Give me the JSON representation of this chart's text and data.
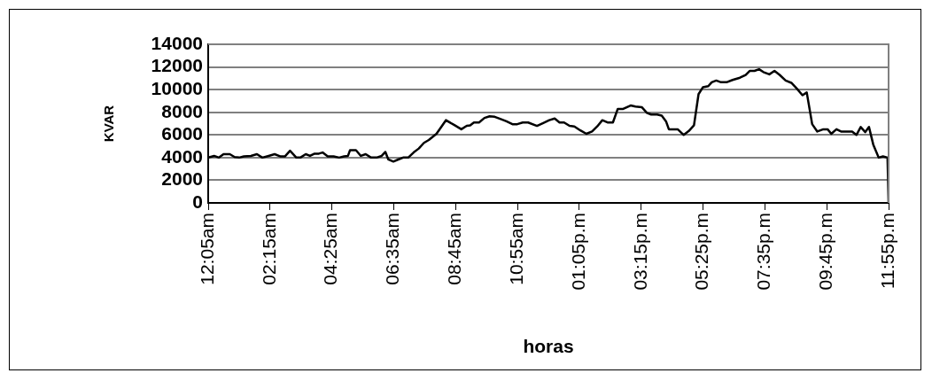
{
  "chart_data": {
    "type": "line",
    "xlabel": "horas",
    "ylabel": "KVAR",
    "xlim": [
      0.0833,
      23.9167
    ],
    "xticks": [
      {
        "value": 0.0833,
        "label": "12:05am"
      },
      {
        "value": 2.25,
        "label": "02:15am"
      },
      {
        "value": 4.4167,
        "label": "04:25am"
      },
      {
        "value": 6.5833,
        "label": "06:35am"
      },
      {
        "value": 8.75,
        "label": "08:45am"
      },
      {
        "value": 10.9167,
        "label": "10:55am"
      },
      {
        "value": 13.0833,
        "label": "01:05p.m"
      },
      {
        "value": 15.25,
        "label": "03:15p.m"
      },
      {
        "value": 17.4167,
        "label": "05:25p.m"
      },
      {
        "value": 19.5833,
        "label": "07:35p.m"
      },
      {
        "value": 21.75,
        "label": "09:45p.m"
      },
      {
        "value": 23.9167,
        "label": "11:55p.m"
      }
    ],
    "ylim": [
      0,
      14000
    ],
    "yticks": [
      0,
      2000,
      4000,
      6000,
      8000,
      10000,
      12000,
      14000
    ],
    "grid": "y",
    "series": [
      {
        "color": "#000000",
        "line_style": "solid",
        "x": [
          0.0833,
          0.29,
          0.46,
          0.62,
          0.84,
          1.01,
          1.17,
          1.33,
          1.58,
          1.79,
          1.98,
          2.2,
          2.41,
          2.62,
          2.77,
          2.95,
          3.17,
          3.31,
          3.5,
          3.65,
          3.81,
          3.96,
          4.09,
          4.27,
          4.48,
          4.67,
          4.84,
          4.98,
          5.05,
          5.26,
          5.43,
          5.6,
          5.79,
          5.98,
          6.16,
          6.29,
          6.39,
          6.57,
          6.76,
          6.91,
          7.09,
          7.28,
          7.46,
          7.64,
          7.81,
          8.08,
          8.41,
          8.72,
          8.95,
          9.14,
          9.26,
          9.39,
          9.57,
          9.76,
          9.94,
          10.12,
          10.33,
          10.53,
          10.74,
          10.91,
          11.1,
          11.29,
          11.6,
          11.82,
          12.03,
          12.22,
          12.39,
          12.55,
          12.74,
          12.91,
          13.12,
          13.33,
          13.53,
          13.71,
          13.89,
          14.07,
          14.26,
          14.43,
          14.62,
          14.88,
          15.05,
          15.27,
          15.45,
          15.6,
          15.81,
          15.97,
          16.12,
          16.22,
          16.53,
          16.74,
          16.92,
          17.1,
          17.26,
          17.41,
          17.6,
          17.72,
          17.88,
          18.05,
          18.24,
          18.45,
          18.71,
          18.91,
          19.05,
          19.22,
          19.38,
          19.53,
          19.74,
          19.92,
          20.1,
          20.31,
          20.51,
          20.7,
          20.9,
          21.05,
          21.24,
          21.42,
          21.63,
          21.78,
          21.91,
          22.09,
          22.25,
          22.48,
          22.64,
          22.79,
          22.94,
          23.1,
          23.23,
          23.38,
          23.57,
          23.72,
          23.88,
          23.9167
        ],
        "values": [
          4000,
          4150,
          4000,
          4300,
          4300,
          4050,
          4000,
          4100,
          4150,
          4300,
          4000,
          4150,
          4300,
          4100,
          4100,
          4600,
          4000,
          4000,
          4300,
          4150,
          4350,
          4350,
          4450,
          4100,
          4100,
          4000,
          4100,
          4150,
          4650,
          4650,
          4150,
          4300,
          4000,
          4000,
          4150,
          4500,
          3850,
          3650,
          3850,
          4000,
          4000,
          4450,
          4800,
          5300,
          5550,
          6100,
          7300,
          6850,
          6500,
          6800,
          6850,
          7100,
          7100,
          7500,
          7650,
          7600,
          7400,
          7200,
          6950,
          6950,
          7100,
          7100,
          6800,
          7050,
          7300,
          7450,
          7100,
          7100,
          6800,
          6750,
          6400,
          6100,
          6300,
          6750,
          7300,
          7100,
          7100,
          8300,
          8300,
          8600,
          8500,
          8450,
          7950,
          7800,
          7800,
          7700,
          7200,
          6500,
          6500,
          6000,
          6350,
          6850,
          9600,
          10200,
          10300,
          10650,
          10800,
          10650,
          10650,
          10850,
          11050,
          11300,
          11650,
          11650,
          11800,
          11550,
          11350,
          11650,
          11300,
          10800,
          10600,
          10100,
          9500,
          9750,
          6950,
          6300,
          6500,
          6500,
          6100,
          6500,
          6300,
          6300,
          6300,
          6000,
          6700,
          6250,
          6700,
          5150,
          4000,
          4100,
          4000,
          0
        ]
      }
    ]
  }
}
